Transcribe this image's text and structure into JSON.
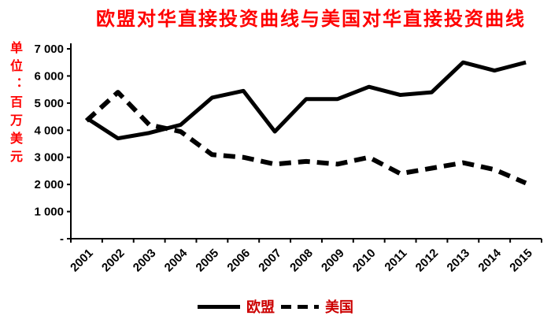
{
  "title": "欧盟对华直接投资曲线与美国对华直接投资曲线",
  "y_axis_unit": "单位：百万美元",
  "colors": {
    "title_text": "#ff0000",
    "unit_text": "#ff0000",
    "legend_text": "#cc0000",
    "line": "#000000",
    "axis": "#000000"
  },
  "chart_data": {
    "type": "line",
    "title": "欧盟对华直接投资曲线与美国对华直接投资曲线",
    "ylabel": "单位：百万美元",
    "xlabel": "",
    "x": [
      "2001",
      "2002",
      "2003",
      "2004",
      "2005",
      "2006",
      "2007",
      "2008",
      "2009",
      "2010",
      "2011",
      "2012",
      "2013",
      "2014",
      "2015"
    ],
    "series": [
      {
        "name": "欧盟",
        "style": "solid",
        "values": [
          4450,
          3700,
          3900,
          4200,
          5200,
          5450,
          3950,
          5150,
          5150,
          5600,
          5300,
          5400,
          6500,
          6200,
          6500
        ]
      },
      {
        "name": "美国",
        "style": "dashed",
        "values": [
          4350,
          5400,
          4200,
          3950,
          3100,
          3000,
          2750,
          2850,
          2750,
          3000,
          2400,
          2600,
          2800,
          2550,
          2050
        ]
      }
    ],
    "ylim": [
      0,
      7000
    ],
    "ytick_step": 1000,
    "ytick_labels": [
      "-",
      "1 000",
      "2 000",
      "3 000",
      "4 000",
      "5 000",
      "6 000",
      "7 000"
    ],
    "grid": false,
    "legend_position": "bottom"
  }
}
